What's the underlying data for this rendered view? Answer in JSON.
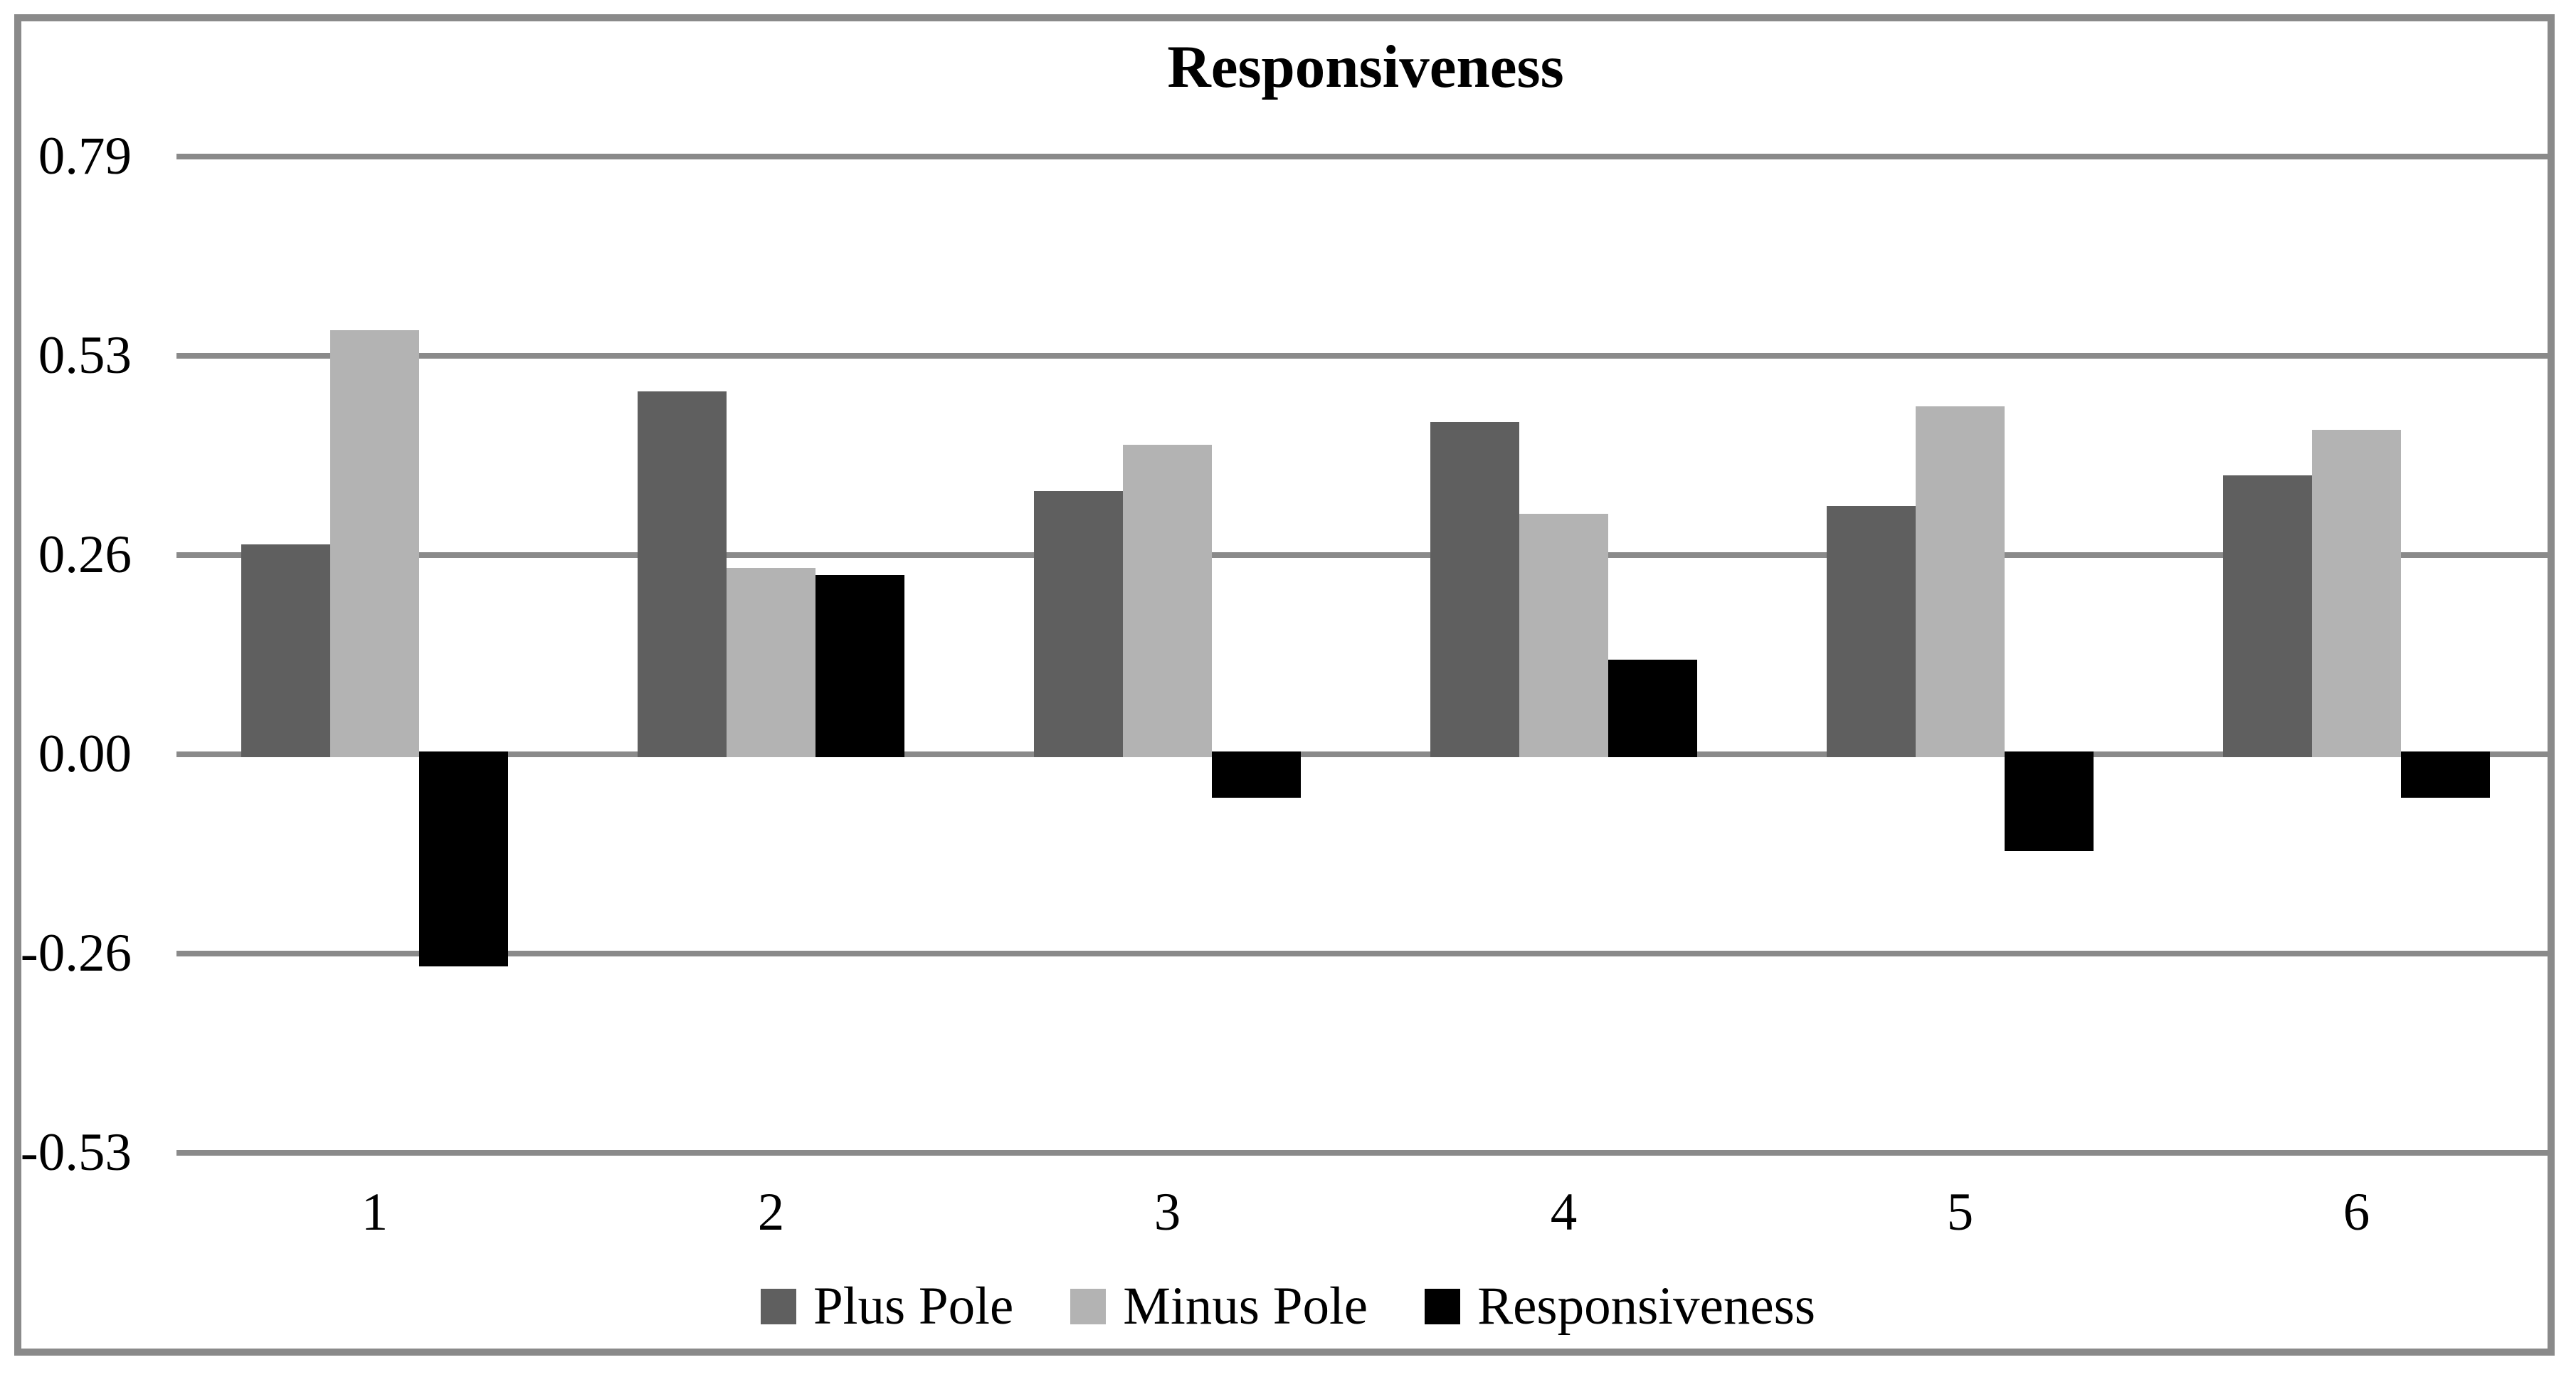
{
  "page": {
    "background_color": "#ffffff",
    "frame_color": "#8a8a8a",
    "gridline_color": "#8a8a8a",
    "text_color": "#000000"
  },
  "chart_data": {
    "type": "bar",
    "title": "Responsiveness",
    "xlabel": "",
    "ylabel": "",
    "categories": [
      "1",
      "2",
      "3",
      "4",
      "5",
      "6"
    ],
    "series": [
      {
        "name": "Plus Pole",
        "color": "#5f5f5f",
        "values": [
          0.27,
          0.47,
          0.34,
          0.43,
          0.32,
          0.36
        ]
      },
      {
        "name": "Minus Pole",
        "color": "#b3b3b3",
        "values": [
          0.55,
          0.24,
          0.4,
          0.31,
          0.45,
          0.42
        ]
      },
      {
        "name": "Responsiveness",
        "color": "#000000",
        "values": [
          -0.28,
          0.23,
          -0.06,
          0.12,
          -0.13,
          -0.06
        ]
      }
    ],
    "y_tick_labels": [
      "0.79",
      "0.53",
      "0.26",
      "0.00",
      "-0.26",
      "-0.53"
    ],
    "y_tick_values": [
      0.79,
      0.53,
      0.26,
      0.0,
      -0.26,
      -0.53
    ],
    "ylim": [
      -0.72,
      0.97
    ],
    "grid": true,
    "legend_position": "bottom",
    "legend_entries": [
      "Plus Pole",
      "Minus Pole",
      "Responsiveness"
    ]
  }
}
